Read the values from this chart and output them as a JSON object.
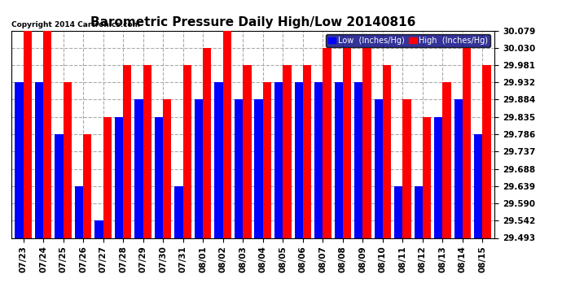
{
  "title": "Barometric Pressure Daily High/Low 20140816",
  "copyright": "Copyright 2014 Cartronics.com",
  "legend_low": "Low  (Inches/Hg)",
  "legend_high": "High  (Inches/Hg)",
  "dates": [
    "07/23",
    "07/24",
    "07/25",
    "07/26",
    "07/27",
    "07/28",
    "07/29",
    "07/30",
    "07/31",
    "08/01",
    "08/02",
    "08/03",
    "08/04",
    "08/05",
    "08/06",
    "08/07",
    "08/08",
    "08/09",
    "08/10",
    "08/11",
    "08/12",
    "08/13",
    "08/14",
    "08/15"
  ],
  "low": [
    29.932,
    29.932,
    29.786,
    29.639,
    29.542,
    29.835,
    29.884,
    29.835,
    29.639,
    29.884,
    29.932,
    29.884,
    29.884,
    29.932,
    29.932,
    29.932,
    29.932,
    29.932,
    29.884,
    29.639,
    29.639,
    29.835,
    29.884,
    29.786
  ],
  "high": [
    30.079,
    30.079,
    29.932,
    29.786,
    29.835,
    29.981,
    29.981,
    29.884,
    29.981,
    30.03,
    30.079,
    29.981,
    29.932,
    29.981,
    29.981,
    30.03,
    30.03,
    30.03,
    29.981,
    29.884,
    29.835,
    29.932,
    30.03,
    29.981
  ],
  "ylim_min": 29.493,
  "ylim_max": 30.079,
  "yticks": [
    29.493,
    29.542,
    29.59,
    29.639,
    29.688,
    29.737,
    29.786,
    29.835,
    29.884,
    29.932,
    29.981,
    30.03,
    30.079
  ],
  "color_low": "#0000FF",
  "color_high": "#FF0000",
  "bg_color": "#FFFFFF",
  "grid_color": "#AAAAAA",
  "title_fontsize": 11,
  "tick_fontsize": 7.5,
  "bar_width": 0.42,
  "legend_bg": "#000080",
  "legend_fg": "#FFFFFF"
}
